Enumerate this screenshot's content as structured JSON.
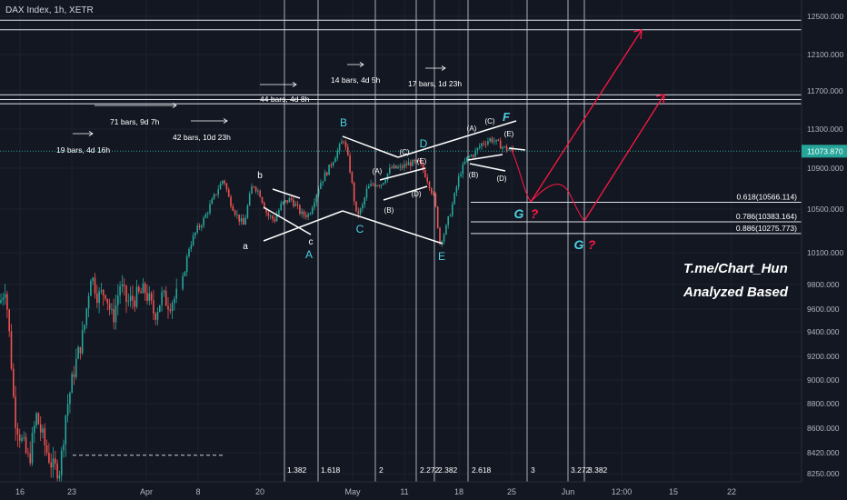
{
  "header": {
    "title": "DAX Index, 1h, XETR"
  },
  "watermark": {
    "line1": "T.me/Chart_Hun",
    "line2": "Analyzed Based"
  },
  "colors": {
    "background": "#131722",
    "up": "#26a69a",
    "down": "#ef5350",
    "grid": "#1e222d",
    "guide": "#d1d4dc",
    "wave_label": "#4dd0e1",
    "projection": "#ff1744",
    "last_price_badge": "#26a69a"
  },
  "chart_data": {
    "type": "candlestick",
    "title": "DAX Index, 1h, XETR",
    "last_price": "11073.870",
    "y_ticks": [
      "12500.000",
      "12100.000",
      "11700.000",
      "11300.000",
      "10900.000",
      "10500.000",
      "10100.000",
      "9800.000",
      "9600.000",
      "9400.000",
      "9200.000",
      "9000.000",
      "8800.000",
      "8600.000",
      "8420.000",
      "8250.000"
    ],
    "x_ticks": [
      "16",
      "23",
      "Apr",
      "8",
      "20",
      "May",
      "11",
      "18",
      "25",
      "Jun",
      "12:00",
      "15",
      "22"
    ],
    "horizontal_levels": [
      {
        "price": 12460
      },
      {
        "price": 12360
      },
      {
        "price": 11660
      },
      {
        "price": 11610
      },
      {
        "price": 11565
      },
      {
        "price": 10566.114,
        "label": "0.618(10566.114)"
      },
      {
        "price": 10383.164,
        "label": "0.786(10383.164)"
      },
      {
        "price": 10275.773,
        "label": "0.886(10275.773)"
      }
    ],
    "fib_time_labels": [
      "1.382",
      "1.618",
      "2",
      "2.272",
      "2.382",
      "2.618",
      "3",
      "3.272",
      "3.382"
    ],
    "bar_count_labels": [
      "19 bars, 4d 16h",
      "71 bars, 9d 7h",
      "42 bars, 10d 23h",
      "44 bars, 4d 8h",
      "14 bars, 4d 5h",
      "17 bars, 1d 23h"
    ],
    "wave_labels": [
      "a",
      "b",
      "c",
      "A",
      "B",
      "C",
      "D",
      "E",
      "F",
      "G",
      "G"
    ],
    "sub_wave_labels": [
      "(A)",
      "(B)",
      "(C)",
      "(D)",
      "(E)",
      "(A)",
      "(B)",
      "(C)",
      "(D)",
      "(E)"
    ],
    "question_marks": [
      "?",
      "?"
    ],
    "dashed_level_price": 8400
  }
}
